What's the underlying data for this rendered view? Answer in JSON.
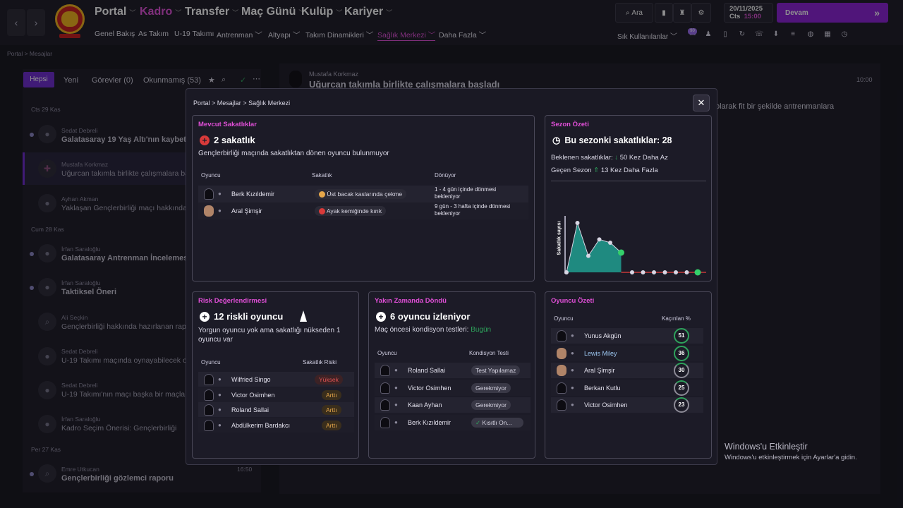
{
  "topnav": {
    "main": [
      "Portal",
      "Kadro",
      "Transfer",
      "Maç Günü",
      "Kulüp",
      "Kariyer"
    ],
    "sub": [
      "Genel Bakış",
      "As Takım",
      "U-19 Takımı",
      "Antrenman",
      "Altyapı",
      "Takım Dinamikleri",
      "Sağlık Merkezi",
      "Daha Fazla"
    ],
    "search_label": "Ara",
    "shortcuts_label": "Sık Kullanılanlar",
    "date": "20/11/2025",
    "day": "Cts",
    "time": "15:00",
    "continue_label": "Devam",
    "badge": "90",
    "colors": {
      "accent": "#e04fd7",
      "continue_bg": "#8a1fd6"
    }
  },
  "breadcrumb_bg": [
    "Portal",
    "Mesajlar"
  ],
  "inbox": {
    "tabs": [
      "Hepsi",
      "Yeni",
      "Görevler (0)",
      "Okunmamış (53)"
    ],
    "groups": [
      {
        "date": "Cts 29 Kas",
        "items": [
          {
            "sender": "Sedat Debreli",
            "title": "Galatasaray 19 Yaş Altı'nın kaybet"
          },
          {
            "sender": "Mustafa Korkmaz",
            "title": "Uğurcan takımla birlikte çalışmalara ba"
          },
          {
            "sender": "Ayhan Akman",
            "title": "Yaklaşan Gençlerbirliği maçı hakkında y"
          }
        ]
      },
      {
        "date": "Cum 28 Kas",
        "items": [
          {
            "sender": "İrfan Saraloğlu",
            "title": "Galatasaray Antrenman İncelemes"
          },
          {
            "sender": "İrfan Saraloğlu",
            "title": "Taktiksel Öneri"
          },
          {
            "sender": "Ali Seçkin",
            "title": "Gençlerbirliği hakkında hazırlanan rapor"
          },
          {
            "sender": "Sedat Debreli",
            "title": "U-19 Takımı maçında oynayabilecek olan"
          },
          {
            "sender": "Sedat Debreli",
            "title": "U-19 Takımı'nın maçı başka bir maçla ça"
          },
          {
            "sender": "İrfan Saraloğlu",
            "title": "Kadro Seçim Önerisi: Gençlerbirliği"
          }
        ]
      },
      {
        "date": "Per 27 Kas",
        "items": [
          {
            "sender": "Emre Utkucan",
            "title": "Gençlerbirliği gözlemci raporu",
            "time": "16:50"
          }
        ]
      }
    ],
    "open_message": {
      "sender": "Mustafa Korkmaz",
      "title": "Uğurcan takımla birlikte çalışmalara başladı",
      "time": "10:00",
      "body": "olarak fit bir şekilde antrenmanlara"
    }
  },
  "modal": {
    "breadcrumb": [
      "Portal",
      "Mesajlar",
      "Sağlık Merkezi"
    ],
    "current_injuries": {
      "title": "Mevcut Sakatlıklar",
      "headline": "2 sakatlık",
      "subtext": "Gençlerbirliği maçında sakatlıktan dönen oyuncu bulunmuyor",
      "col_player": "Oyuncu",
      "col_injury": "Sakatlık",
      "col_return": "Dönüyor",
      "rows": [
        {
          "player": "Berk Kızıldemir",
          "injury": "Üst bacak kaslarında çekme",
          "return": "1 - 4 gün içinde dönmesi bekleniyor",
          "severity": "orange"
        },
        {
          "player": "Aral Şimşir",
          "injury": "Ayak kemiğinde kırık",
          "return": "9 gün - 3 hafta içinde dönmesi bekleniyor",
          "severity": "red"
        }
      ]
    },
    "season": {
      "title": "Sezon Özeti",
      "headline": "Bu sezonki sakatlıklar: 28",
      "expected_label": "Beklenen sakatlıklar:",
      "expected_value": "50 Kez Daha Az",
      "last_label": "Geçen Sezon",
      "last_value": "13 Kez Daha Fazla"
    },
    "chart_data": {
      "type": "area",
      "ylabel": "Sakatlık sayısı",
      "values": [
        0,
        3,
        1,
        2,
        1.8,
        1.2,
        0,
        0,
        0,
        0,
        0,
        0,
        0
      ],
      "highlight_index": [
        5,
        12
      ]
    },
    "risk": {
      "title": "Risk Değerlendirmesi",
      "headline": "12 riskli oyuncu",
      "subtext": "Yorgun oyuncu yok ama sakatlığı nükseden 1 oyuncu var",
      "col_player": "Oyuncu",
      "col_risk": "Sakatlık Riski",
      "rows": [
        {
          "player": "Wilfried Singo",
          "risk": "Yüksek",
          "level": "red"
        },
        {
          "player": "Victor Osimhen",
          "risk": "Arttı",
          "level": "orange"
        },
        {
          "player": "Roland Sallai",
          "risk": "Arttı",
          "level": "orange"
        },
        {
          "player": "Abdülkerim Bardakcı",
          "risk": "Arttı",
          "level": "orange"
        }
      ]
    },
    "recent": {
      "title": "Yakın Zamanda Döndü",
      "headline": "6 oyuncu izleniyor",
      "sub_label": "Maç öncesi kondisyon testleri:",
      "sub_value": "Bugün",
      "col_player": "Oyuncu",
      "col_test": "Kondisyon Testi",
      "rows": [
        {
          "player": "Roland Sallai",
          "test": "Test Yapılamaz"
        },
        {
          "player": "Victor Osimhen",
          "test": "Gerekmiyor"
        },
        {
          "player": "Kaan Ayhan",
          "test": "Gerekmiyor"
        },
        {
          "player": "Berk Kızıldemir",
          "test": "Kısıtlı On..."
        }
      ]
    },
    "summary": {
      "title": "Oyuncu Özeti",
      "col_player": "Oyuncu",
      "col_missed": "Kaçırılan %",
      "rows": [
        {
          "player": "Yunus Akgün",
          "value": "51"
        },
        {
          "player": "Lewis Miley",
          "value": "36"
        },
        {
          "player": "Aral Şimşir",
          "value": "30"
        },
        {
          "player": "Berkan Kutlu",
          "value": "25"
        },
        {
          "player": "Victor Osimhen",
          "value": "23"
        }
      ]
    }
  },
  "watermark": {
    "title": "Windows'u Etkinleştir",
    "sub": "Windows'u etkinleştirmek için Ayarlar'a gidin."
  }
}
